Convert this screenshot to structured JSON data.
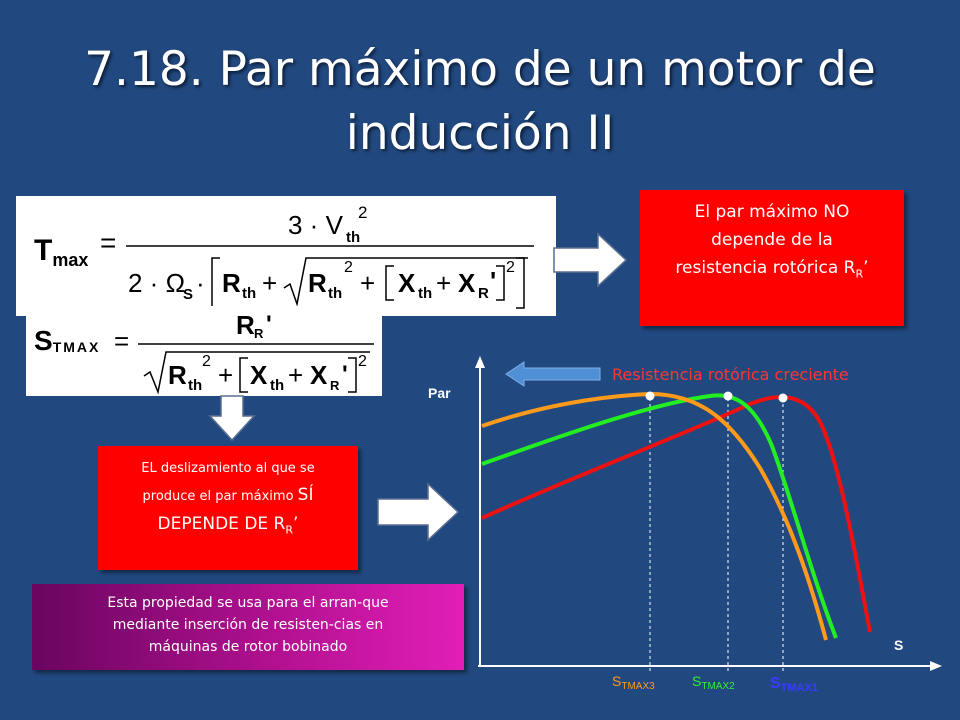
{
  "slide": {
    "title_line1": "7.18. Par máximo de un motor de",
    "title_line2": "inducción II"
  },
  "formulas": {
    "tmax_symbol": "T",
    "tmax_sub": "max",
    "tmax_numerator": "3 · V",
    "tmax_denominator_lead": "2 · Ω",
    "stmax_symbol": "S",
    "stmax_sub": "TMAX",
    "stmax_numerator": "R"
  },
  "callouts": {
    "no_depende": {
      "line1": "El par máximo NO",
      "line2": "depende de la",
      "line3": "resistencia rotórica R",
      "sub": "R",
      "tail": "’"
    },
    "si_depende": {
      "line1": "EL deslizamiento al que se",
      "line2a": "produce el par máximo ",
      "line2b": "SÍ",
      "line3": "DEPENDE DE R",
      "sub": "R",
      "tail": "’"
    },
    "propiedad": {
      "line1": "Esta propiedad se usa para el arran-que",
      "line2": "mediante inserción de resisten-cias en",
      "line3": "máquinas de rotor bobinado"
    }
  },
  "chart": {
    "y_axis_label": "Par",
    "x_axis_label": "S",
    "arrow_label": "Resistencia rotórica creciente",
    "markers": [
      {
        "label_main": "S",
        "label_sub": "TMAX3",
        "color": "#ff9a1a"
      },
      {
        "label_main": "S",
        "label_sub": "TMAX2",
        "color": "#33ee33"
      },
      {
        "label_main": "S",
        "label_sub": "TMAX1",
        "color": "#3a3aff"
      }
    ]
  },
  "colors": {
    "background": "#22497f",
    "callout_red": "#ff0000",
    "arrow_label": "#ff3333",
    "curve_red": "#ee1111",
    "curve_green": "#22ee22",
    "curve_orange": "#ff9a1a"
  }
}
